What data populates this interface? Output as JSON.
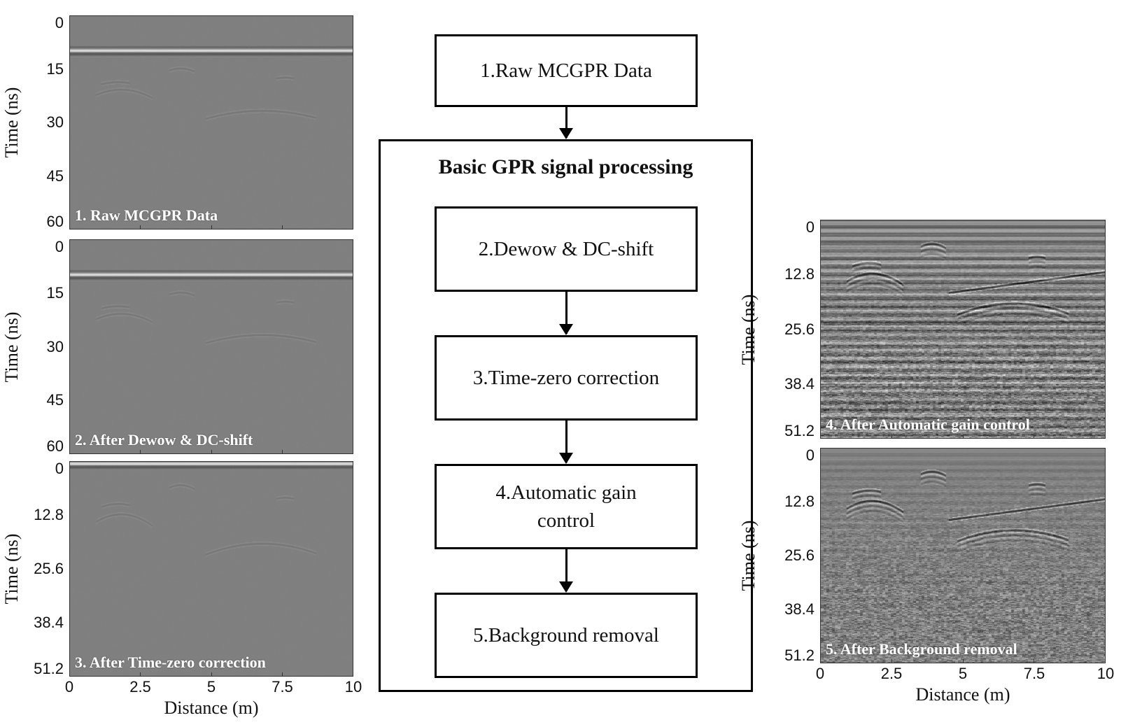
{
  "flowchart": {
    "input_step": "1.Raw MCGPR Data",
    "group_title": "Basic GPR signal processing",
    "steps": [
      "2.Dewow & DC-shift",
      "3.Time-zero correction",
      "4.Automatic gain control",
      "5.Background removal"
    ]
  },
  "chart_data": [
    {
      "type": "heatmap",
      "title": "1. Raw MCGPR Data",
      "ylabel": "Time (ns)",
      "xlabel": "",
      "yticks": [
        "0",
        "15",
        "30",
        "45",
        "60"
      ],
      "ylim": [
        0,
        60
      ],
      "xlim": [
        0,
        10
      ],
      "xticks": []
    },
    {
      "type": "heatmap",
      "title": "2. After Dewow & DC-shift",
      "ylabel": "Time (ns)",
      "xlabel": "",
      "yticks": [
        "0",
        "15",
        "30",
        "45",
        "60"
      ],
      "ylim": [
        0,
        60
      ],
      "xlim": [
        0,
        10
      ],
      "xticks": []
    },
    {
      "type": "heatmap",
      "title": "3. After Time-zero correction",
      "ylabel": "Time (ns)",
      "xlabel": "Distance (m)",
      "yticks": [
        "0",
        "12.8",
        "25.6",
        "38.4",
        "51.2"
      ],
      "ylim": [
        0,
        51.2
      ],
      "xlim": [
        0,
        10
      ],
      "xticks": [
        "0",
        "2.5",
        "5",
        "7.5",
        "10"
      ]
    },
    {
      "type": "heatmap",
      "title": "4. After Automatic gain control",
      "ylabel": "Time (ns)",
      "xlabel": "",
      "yticks": [
        "0",
        "12.8",
        "25.6",
        "38.4",
        "51.2"
      ],
      "ylim": [
        0,
        51.2
      ],
      "xlim": [
        0,
        10
      ],
      "xticks": []
    },
    {
      "type": "heatmap",
      "title": "5. After Background removal",
      "ylabel": "Time (ns)",
      "xlabel": "Distance (m)",
      "yticks": [
        "0",
        "12.8",
        "25.6",
        "38.4",
        "51.2"
      ],
      "ylim": [
        0,
        51.2
      ],
      "xlim": [
        0,
        10
      ],
      "xticks": [
        "0",
        "2.5",
        "5",
        "7.5",
        "10"
      ]
    }
  ]
}
